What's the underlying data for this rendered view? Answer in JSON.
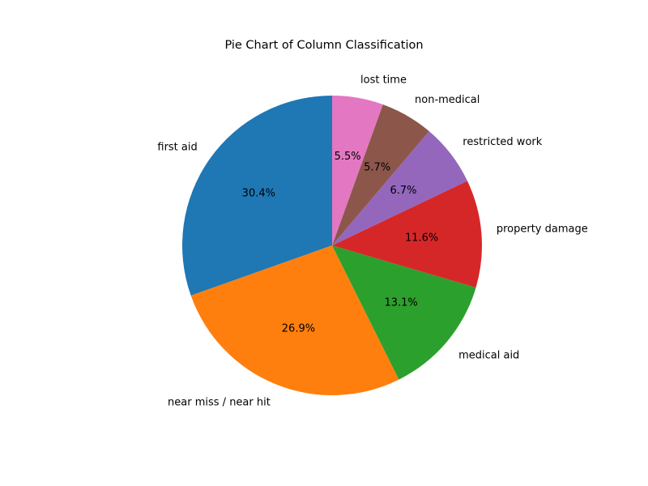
{
  "chart_data": {
    "type": "pie",
    "title": "Pie Chart of Column Classification",
    "start_angle_deg": 90,
    "direction": "counterclockwise",
    "slices": [
      {
        "label": "first aid",
        "value": 30.4,
        "pct_label": "30.4%",
        "color": "#1f77b4"
      },
      {
        "label": "near miss / near hit",
        "value": 26.9,
        "pct_label": "26.9%",
        "color": "#ff7f0e"
      },
      {
        "label": "medical aid",
        "value": 13.1,
        "pct_label": "13.1%",
        "color": "#2ca02c"
      },
      {
        "label": "property damage",
        "value": 11.6,
        "pct_label": "11.6%",
        "color": "#d62728"
      },
      {
        "label": "restricted work",
        "value": 6.7,
        "pct_label": "6.7%",
        "color": "#9467bd"
      },
      {
        "label": "non-medical",
        "value": 5.7,
        "pct_label": "5.7%",
        "color": "#8c564b"
      },
      {
        "label": "lost time",
        "value": 5.5,
        "pct_label": "5.5%",
        "color": "#e377c2"
      }
    ]
  }
}
